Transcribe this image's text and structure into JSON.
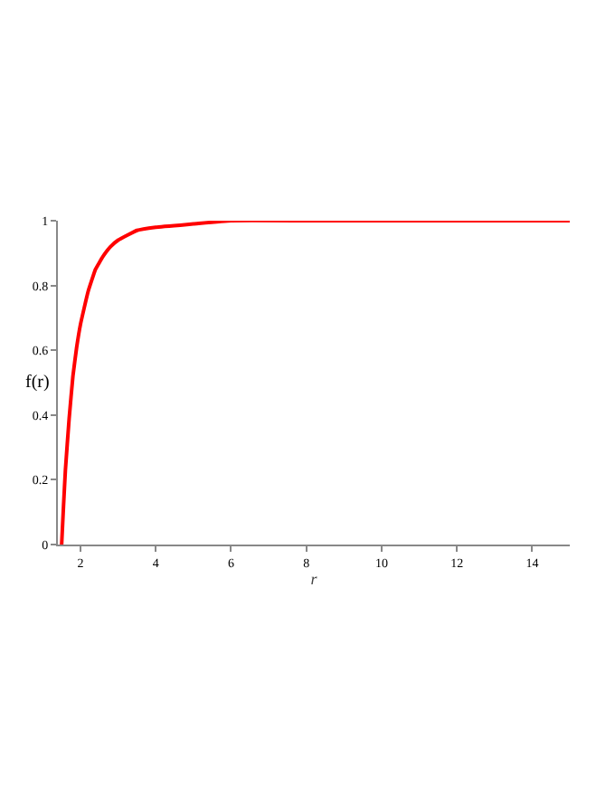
{
  "chart_data": {
    "type": "line",
    "xlabel": "r",
    "ylabel": "f(r)",
    "x": [
      1.5,
      1.55,
      1.6,
      1.7,
      1.8,
      1.9,
      2.0,
      2.2,
      2.4,
      2.6,
      2.8,
      3.0,
      3.5,
      4,
      5,
      6,
      8,
      10,
      12,
      15
    ],
    "series": [
      {
        "color": "#ff0000",
        "values": [
          0,
          0.12,
          0.23,
          0.39,
          0.52,
          0.61,
          0.68,
          0.78,
          0.85,
          0.89,
          0.92,
          0.94,
          0.97,
          0.98,
          0.99,
          1.0,
          1.0,
          1.0,
          1.0,
          1.0
        ]
      }
    ],
    "xlim": [
      1.4,
      15
    ],
    "xticks": [
      2,
      4,
      6,
      8,
      10,
      12,
      14
    ],
    "ylim": [
      0,
      1
    ],
    "yticks": [
      0,
      0.2,
      0.4,
      0.6,
      0.8,
      1
    ],
    "marker": "none",
    "line_style": "solid"
  }
}
